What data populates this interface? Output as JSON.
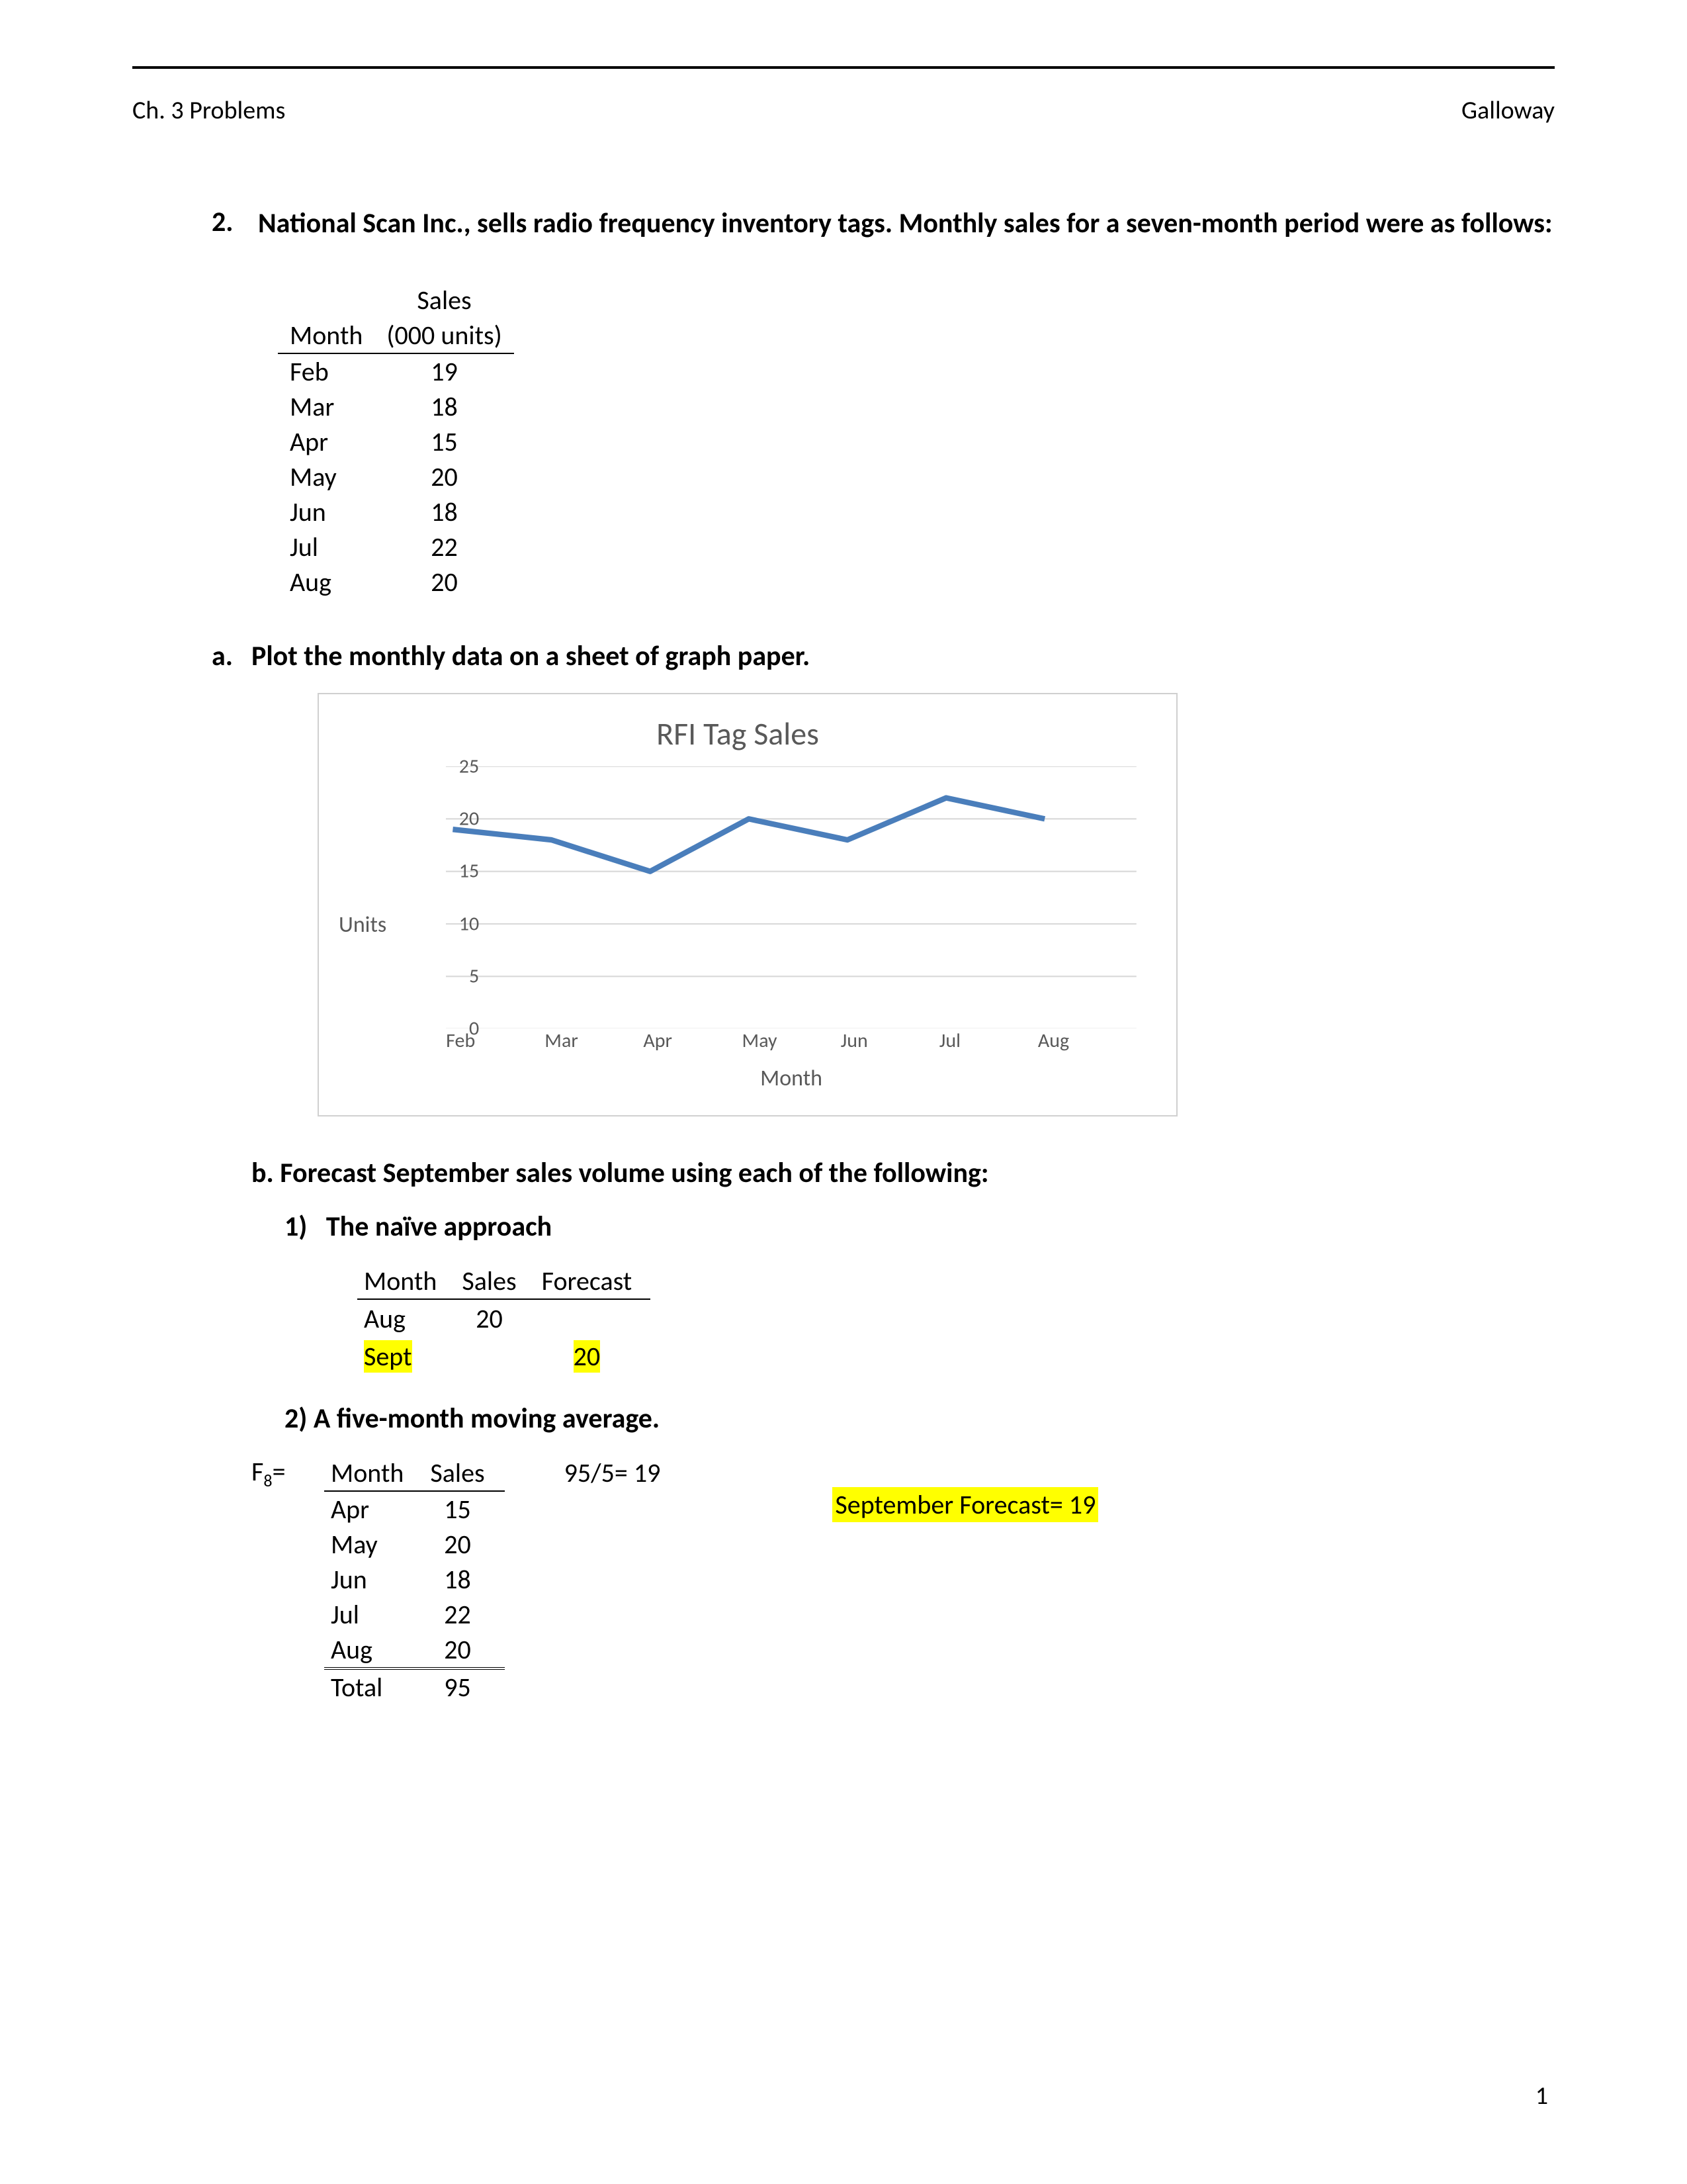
{
  "header": {
    "left": "Ch. 3 Problems",
    "right": "Galloway"
  },
  "problem": {
    "number": "2.",
    "text": "National Scan Inc., sells radio frequency inventory tags. Monthly sales for a seven-month period were as follows:"
  },
  "sales_table": {
    "header_month": "Month",
    "header_sales_line1": "Sales",
    "header_sales_line2": "(000 units)",
    "rows": [
      {
        "month": "Feb",
        "sales": "19"
      },
      {
        "month": "Mar",
        "sales": "18"
      },
      {
        "month": "Apr",
        "sales": "15"
      },
      {
        "month": "May",
        "sales": "20"
      },
      {
        "month": "Jun",
        "sales": "18"
      },
      {
        "month": "Jul",
        "sales": "22"
      },
      {
        "month": "Aug",
        "sales": "20"
      }
    ]
  },
  "part_a": {
    "label": "a.",
    "text": "Plot the monthly data on a sheet of graph paper."
  },
  "chart": {
    "type": "line",
    "title": "RFI Tag Sales",
    "y_axis_label": "Units",
    "x_axis_label": "Month",
    "x_categories": [
      "Feb",
      "Mar",
      "Apr",
      "May",
      "Jun",
      "Jul",
      "Aug"
    ],
    "y_values": [
      19,
      18,
      15,
      20,
      18,
      22,
      20
    ],
    "y_min": 0,
    "y_max": 25,
    "y_tick_step": 5,
    "line_color": "#4a7ebb",
    "line_width": 8,
    "grid_color": "#d9d9d9",
    "border_color": "#d0d0d0",
    "text_color": "#595959",
    "background_color": "#ffffff",
    "title_fontsize": 48,
    "label_fontsize": 34,
    "tick_fontsize": 30
  },
  "part_b": {
    "text": "b. Forecast September sales volume using each of the following:"
  },
  "sub1": {
    "label": "1)",
    "text": "The naïve approach"
  },
  "naive_table": {
    "header_month": "Month",
    "header_sales": "Sales",
    "header_forecast": "Forecast",
    "rows": [
      {
        "month": "Aug",
        "sales": "20",
        "forecast": "",
        "hl_month": false,
        "hl_forecast": false
      },
      {
        "month": "Sept",
        "sales": "",
        "forecast": "20",
        "hl_month": true,
        "hl_forecast": true
      }
    ]
  },
  "sub2": {
    "text": "2) A five-month moving average."
  },
  "ma": {
    "f8_prefix": "F",
    "f8_sub": "8",
    "f8_eq": "=",
    "header_month": "Month",
    "header_sales": "Sales",
    "rows": [
      {
        "month": "Apr",
        "sales": "15"
      },
      {
        "month": "May",
        "sales": "20"
      },
      {
        "month": "Jun",
        "sales": "18"
      },
      {
        "month": "Jul",
        "sales": "22"
      },
      {
        "month": "Aug",
        "sales": "20"
      }
    ],
    "total_label": "Total",
    "total_value": "95",
    "calc_text": "95/5= 19",
    "forecast_text": "September Forecast= 19"
  },
  "page_number": "1"
}
